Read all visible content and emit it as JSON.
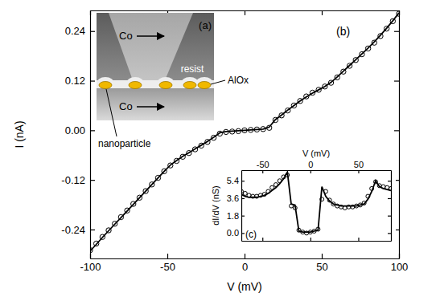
{
  "diagram": {
    "label": "(a)",
    "top_electrode": "Co",
    "bottom_electrode": "Co",
    "resist": "resist",
    "barrier": "AlOx",
    "particle": "nanoparticle"
  },
  "chart_data": [
    {
      "type": "scatter",
      "title": "(b)",
      "x_label": "V (mV)",
      "y_label": "I (nA)",
      "x": [
        -100,
        -96,
        -92,
        -88,
        -84,
        -80,
        -76,
        -72,
        -68,
        -64,
        -60,
        -56,
        -52,
        -48,
        -44,
        -40,
        -36,
        -32,
        -28,
        -24,
        -20,
        -16,
        -12,
        -8,
        -4,
        0,
        4,
        8,
        12,
        16,
        20,
        24,
        28,
        32,
        36,
        40,
        44,
        48,
        52,
        56,
        60,
        64,
        68,
        72,
        76,
        80,
        84,
        88,
        92,
        96,
        100
      ],
      "series": [
        {
          "type": "scatter",
          "marker": "circle-open",
          "color": "#000000",
          "values": [
            -0.29,
            -0.274,
            -0.258,
            -0.242,
            -0.226,
            -0.21,
            -0.194,
            -0.178,
            -0.163,
            -0.147,
            -0.131,
            -0.115,
            -0.099,
            -0.085,
            -0.074,
            -0.064,
            -0.055,
            -0.046,
            -0.037,
            -0.028,
            -0.018,
            -0.008,
            -0.004,
            -0.003,
            -0.002,
            0,
            0.001,
            0.002,
            0.003,
            0.006,
            0.025,
            0.036,
            0.048,
            0.06,
            0.071,
            0.082,
            0.091,
            0.098,
            0.106,
            0.115,
            0.128,
            0.142,
            0.156,
            0.17,
            0.184,
            0.198,
            0.212,
            0.228,
            0.246,
            0.264,
            0.282
          ]
        },
        {
          "type": "line",
          "line_style": "solid",
          "color": "#000000",
          "values": [
            -0.292,
            -0.276,
            -0.259,
            -0.243,
            -0.227,
            -0.211,
            -0.195,
            -0.179,
            -0.163,
            -0.147,
            -0.131,
            -0.115,
            -0.099,
            -0.084,
            -0.073,
            -0.063,
            -0.054,
            -0.045,
            -0.036,
            -0.027,
            -0.017,
            -0.006,
            -0.003,
            -0.002,
            -0.001,
            0,
            0.001,
            0.002,
            0.003,
            0.008,
            0.026,
            0.037,
            0.049,
            0.06,
            0.071,
            0.081,
            0.09,
            0.098,
            0.106,
            0.116,
            0.129,
            0.143,
            0.157,
            0.171,
            0.185,
            0.199,
            0.214,
            0.23,
            0.247,
            0.265,
            0.284
          ]
        }
      ],
      "xlim": [
        -100,
        100
      ],
      "ylim": [
        -0.31,
        0.29
      ],
      "xticks": [
        -100,
        -50,
        0,
        50,
        100
      ],
      "yticks": [
        -0.24,
        -0.12,
        {
          "value": 0,
          "label": "0.00"
        },
        0.12,
        0.24
      ]
    },
    {
      "type": "scatter",
      "title": "(c)",
      "x_label": "V (mV)",
      "y_label": "dI/dV (nS)",
      "x": [
        -72,
        -68,
        -64,
        -60,
        -56,
        -52,
        -48,
        -44,
        -40,
        -36,
        -32,
        -28,
        -24,
        -20,
        -16,
        -12,
        -8,
        -4,
        0,
        4,
        8,
        12,
        16,
        20,
        24,
        28,
        32,
        36,
        40,
        44,
        48,
        52,
        56,
        60,
        64,
        68,
        72,
        76,
        80,
        84
      ],
      "series": [
        {
          "type": "scatter",
          "marker": "circle-open",
          "color": "#000000",
          "values": [
            4.3,
            4.1,
            3.9,
            3.8,
            3.8,
            3.9,
            4.0,
            4.3,
            4.7,
            5.0,
            5.4,
            5.8,
            6.0,
            2.8,
            2.6,
            0.3,
            0.1,
            0.0,
            0.1,
            0.2,
            0.4,
            3.5,
            4.3,
            3.4,
            3.0,
            2.8,
            2.7,
            2.6,
            2.7,
            2.7,
            2.8,
            2.9,
            3.1,
            3.8,
            4.6,
            5.3,
            4.9,
            4.8,
            4.7,
            4.6
          ]
        },
        {
          "type": "line",
          "line_style": "solid",
          "color": "#000000",
          "values": [
            4.0,
            3.8,
            3.7,
            3.7,
            3.7,
            3.8,
            3.9,
            4.1,
            4.4,
            4.7,
            5.1,
            5.6,
            6.3,
            3.0,
            2.9,
            0.2,
            0.1,
            0.1,
            0.1,
            0.2,
            0.3,
            4.8,
            3.8,
            3.3,
            3.0,
            2.9,
            2.8,
            2.8,
            2.8,
            2.8,
            2.8,
            2.9,
            3.0,
            3.5,
            4.3,
            5.4,
            4.8,
            4.6,
            4.5,
            4.4
          ]
        }
      ],
      "xlim": [
        -72,
        84
      ],
      "ylim": [
        -0.8,
        6.5
      ],
      "xticks": [
        -50,
        0,
        50
      ],
      "yticks": [
        {
          "value": 0,
          "label": "0.0"
        },
        1.8,
        3.6,
        5.4
      ]
    }
  ]
}
